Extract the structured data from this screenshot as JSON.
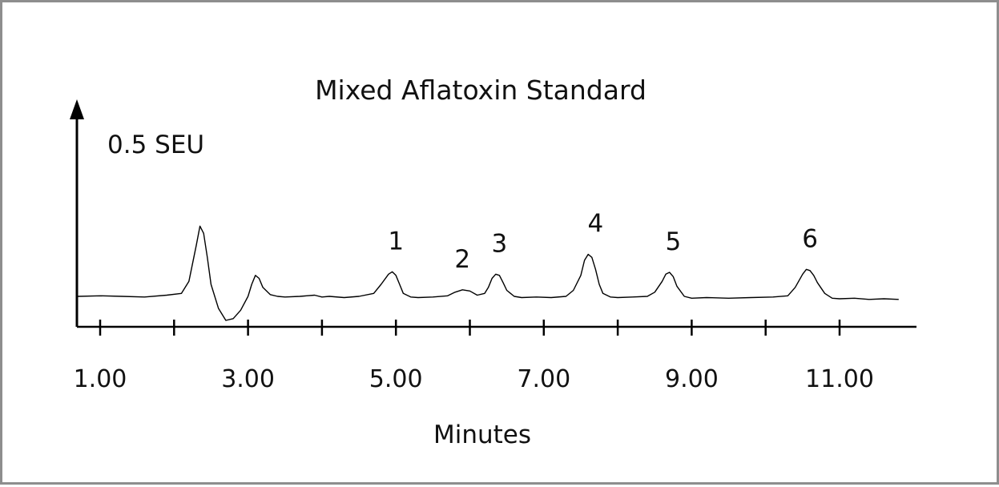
{
  "chart_data": {
    "type": "line",
    "title": "Mixed Aflatoxin Standard",
    "xlabel": "Minutes",
    "ylabel": "0.5 SEU",
    "xlim": [
      0.7,
      12.1
    ],
    "ylim": [
      -0.25,
      2.6
    ],
    "x_ticks": [
      1.0,
      2.0,
      3.0,
      4.0,
      5.0,
      6.0,
      7.0,
      8.0,
      9.0,
      10.0,
      11.0
    ],
    "x_tick_labels": [
      "1.00",
      "3.00",
      "5.00",
      "7.00",
      "9.00",
      "11.00"
    ],
    "grid": false,
    "legend": "none",
    "trace": {
      "x": [
        0.7,
        1.0,
        1.3,
        1.6,
        1.9,
        2.1,
        2.2,
        2.3,
        2.35,
        2.4,
        2.45,
        2.5,
        2.6,
        2.7,
        2.8,
        2.9,
        3.0,
        3.05,
        3.1,
        3.15,
        3.2,
        3.3,
        3.4,
        3.5,
        3.7,
        3.9,
        4.0,
        4.1,
        4.3,
        4.5,
        4.7,
        4.8,
        4.9,
        4.95,
        5.0,
        5.05,
        5.1,
        5.2,
        5.3,
        5.5,
        5.7,
        5.8,
        5.9,
        6.0,
        6.1,
        6.2,
        6.25,
        6.3,
        6.35,
        6.4,
        6.45,
        6.5,
        6.6,
        6.7,
        6.9,
        7.1,
        7.3,
        7.4,
        7.5,
        7.55,
        7.6,
        7.65,
        7.7,
        7.75,
        7.8,
        7.9,
        8.0,
        8.2,
        8.4,
        8.5,
        8.6,
        8.65,
        8.7,
        8.75,
        8.8,
        8.9,
        9.0,
        9.2,
        9.5,
        9.8,
        10.1,
        10.3,
        10.4,
        10.5,
        10.55,
        10.6,
        10.65,
        10.7,
        10.8,
        10.9,
        11.0,
        11.2,
        11.4,
        11.6,
        11.8
      ],
      "y": [
        0.25,
        0.26,
        0.25,
        0.24,
        0.27,
        0.3,
        0.5,
        1.1,
        1.42,
        1.3,
        0.9,
        0.45,
        0.05,
        -0.15,
        -0.12,
        0.02,
        0.25,
        0.45,
        0.6,
        0.55,
        0.4,
        0.28,
        0.25,
        0.24,
        0.25,
        0.27,
        0.24,
        0.25,
        0.23,
        0.25,
        0.3,
        0.45,
        0.62,
        0.66,
        0.6,
        0.45,
        0.3,
        0.24,
        0.23,
        0.24,
        0.26,
        0.32,
        0.36,
        0.34,
        0.27,
        0.3,
        0.4,
        0.55,
        0.62,
        0.6,
        0.48,
        0.35,
        0.25,
        0.23,
        0.24,
        0.23,
        0.25,
        0.35,
        0.6,
        0.85,
        0.95,
        0.9,
        0.7,
        0.45,
        0.3,
        0.24,
        0.23,
        0.24,
        0.25,
        0.32,
        0.5,
        0.62,
        0.65,
        0.58,
        0.42,
        0.25,
        0.22,
        0.23,
        0.22,
        0.23,
        0.24,
        0.26,
        0.4,
        0.62,
        0.7,
        0.68,
        0.6,
        0.48,
        0.3,
        0.22,
        0.21,
        0.22,
        0.2,
        0.21,
        0.2
      ]
    },
    "annotations": [
      {
        "text": "1",
        "x": 5.0
      },
      {
        "text": "2",
        "x": 5.9
      },
      {
        "text": "3",
        "x": 6.4
      },
      {
        "text": "4",
        "x": 7.7
      },
      {
        "text": "5",
        "x": 8.75
      },
      {
        "text": "6",
        "x": 10.6
      }
    ]
  }
}
